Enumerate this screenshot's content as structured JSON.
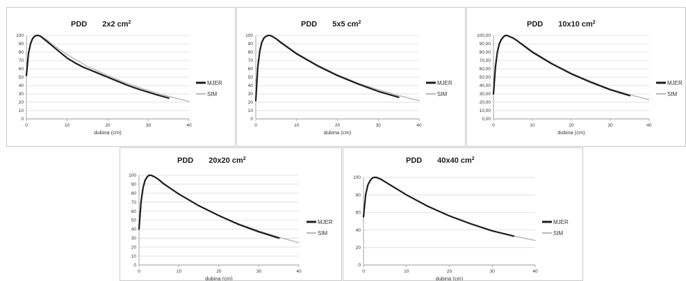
{
  "colors": {
    "measured": "#1c1c1c",
    "simulated": "#b8b8b8",
    "grid": "#d9d9d9",
    "axis": "#9a9a9a"
  },
  "chart_data": [
    {
      "type": "line",
      "title": "PDD",
      "field": "2x2 cm",
      "field_sup": "2",
      "xlabel": "dubina (cm)",
      "xlim": [
        0,
        40
      ],
      "ylim": [
        0,
        100
      ],
      "xticks": [
        "0",
        "10",
        "20",
        "30",
        "40"
      ],
      "yticks": [
        "0",
        "10",
        "20",
        "30",
        "40",
        "50",
        "60",
        "70",
        "80",
        "90",
        "100"
      ],
      "grid": true,
      "legend": "right",
      "series": [
        {
          "name": "MJER",
          "x": [
            0,
            0.5,
            1,
            1.5,
            2,
            2.5,
            3,
            3.5,
            4,
            5,
            6,
            8,
            10,
            12,
            14,
            15,
            16,
            18,
            20,
            22,
            25,
            28,
            30,
            32,
            35
          ],
          "y": [
            52,
            78,
            90,
            96,
            99,
            100,
            100,
            99,
            97,
            93,
            89,
            81,
            73,
            67,
            62,
            60,
            58,
            54,
            50,
            46,
            40,
            35,
            32,
            29,
            25
          ]
        },
        {
          "name": "SIM",
          "x": [
            0,
            0.5,
            1,
            1.5,
            2,
            2.5,
            3,
            4,
            5,
            6,
            8,
            10,
            15,
            20,
            25,
            30,
            35,
            40
          ],
          "y": [
            55,
            80,
            91,
            97,
            99,
            100,
            100,
            98,
            95,
            91,
            84,
            77,
            63,
            52,
            42,
            34,
            27,
            21
          ]
        }
      ]
    },
    {
      "type": "line",
      "title": "PDD",
      "field": "5x5 cm",
      "field_sup": "2",
      "xlabel": "dubina (cm)",
      "xlim": [
        0,
        40
      ],
      "ylim": [
        0,
        100
      ],
      "xticks": [
        "0",
        "10",
        "20",
        "30",
        "40"
      ],
      "yticks": [
        "0",
        "10",
        "20",
        "30",
        "40",
        "50",
        "60",
        "70",
        "80",
        "90",
        "100"
      ],
      "grid": true,
      "legend": "right",
      "series": [
        {
          "name": "MJER",
          "x": [
            0,
            0.5,
            1,
            1.5,
            2,
            2.5,
            3,
            3.5,
            4,
            5,
            6,
            8,
            10,
            15,
            20,
            25,
            30,
            35
          ],
          "y": [
            22,
            62,
            82,
            92,
            97,
            99,
            100,
            100,
            99,
            96,
            92,
            85,
            78,
            64,
            52,
            42,
            33,
            26
          ]
        },
        {
          "name": "SIM",
          "x": [
            0,
            0.5,
            1,
            1.5,
            2,
            2.5,
            3,
            3.5,
            4,
            5,
            6,
            8,
            10,
            15,
            20,
            25,
            30,
            35,
            40
          ],
          "y": [
            30,
            66,
            84,
            93,
            97,
            99,
            100,
            100,
            99,
            96,
            93,
            86,
            79,
            65,
            53,
            43,
            35,
            28,
            22
          ]
        }
      ]
    },
    {
      "type": "line",
      "title": "PDD",
      "field": "10x10 cm",
      "field_sup": "2",
      "xlabel": "dubina (cm)",
      "xlim": [
        0,
        40
      ],
      "ylim": [
        0,
        100
      ],
      "xticks": [
        "0",
        "10",
        "20",
        "30",
        "40"
      ],
      "yticks": [
        "0,00",
        "10,00",
        "20,00",
        "30,00",
        "40,00",
        "50,00",
        "60,00",
        "70,00",
        "80,00",
        "90,00",
        "100,00"
      ],
      "grid": true,
      "legend": "right",
      "series": [
        {
          "name": "MJER",
          "x": [
            0,
            0.5,
            1,
            1.5,
            2,
            2.5,
            3,
            3.5,
            4,
            5,
            6,
            8,
            10,
            15,
            20,
            25,
            30,
            35
          ],
          "y": [
            30,
            62,
            80,
            90,
            95,
            98,
            100,
            100,
            99,
            97,
            94,
            87,
            80,
            66,
            54,
            44,
            35,
            28
          ]
        },
        {
          "name": "SIM",
          "x": [
            0,
            0.5,
            1,
            1.5,
            2,
            2.5,
            3,
            3.5,
            4,
            5,
            6,
            8,
            10,
            15,
            20,
            25,
            30,
            35,
            40
          ],
          "y": [
            35,
            65,
            82,
            91,
            96,
            98,
            100,
            100,
            99,
            97,
            94,
            88,
            81,
            67,
            55,
            45,
            36,
            29,
            23
          ]
        }
      ]
    },
    {
      "type": "line",
      "title": "PDD",
      "field": "20x20 cm",
      "field_sup": "2",
      "xlabel": "dubina (cm)",
      "xlim": [
        0,
        40
      ],
      "ylim": [
        0,
        100
      ],
      "xticks": [
        "0",
        "10",
        "20",
        "30",
        "40"
      ],
      "yticks": [
        "0",
        "10",
        "20",
        "30",
        "40",
        "50",
        "60",
        "70",
        "80",
        "90",
        "100"
      ],
      "grid": true,
      "legend": "right",
      "series": [
        {
          "name": "MJER",
          "x": [
            0,
            0.5,
            1,
            1.5,
            2,
            2.5,
            3,
            3.5,
            4,
            5,
            6,
            8,
            10,
            15,
            20,
            25,
            30,
            35
          ],
          "y": [
            40,
            70,
            86,
            94,
            98,
            100,
            100,
            99,
            98,
            95,
            91,
            85,
            79,
            66,
            55,
            45,
            37,
            30
          ]
        },
        {
          "name": "SIM",
          "x": [
            0,
            0.5,
            1,
            1.5,
            2,
            2.5,
            3,
            3.5,
            4,
            5,
            6,
            8,
            10,
            15,
            20,
            25,
            30,
            35,
            40
          ],
          "y": [
            45,
            73,
            87,
            95,
            98,
            100,
            100,
            99,
            98,
            95,
            92,
            85,
            79,
            66,
            55,
            46,
            38,
            31,
            25
          ]
        }
      ]
    },
    {
      "type": "line",
      "title": "PDD",
      "field": "40x40 cm",
      "field_sup": "2",
      "xlabel": "dubina (cm)",
      "xlim": [
        0,
        40
      ],
      "ylim": [
        0,
        100
      ],
      "xticks": [
        "0",
        "10",
        "20",
        "30",
        "40"
      ],
      "yticks": [
        "0",
        "20",
        "40",
        "60",
        "80",
        "100"
      ],
      "grid": true,
      "legend": "right",
      "series": [
        {
          "name": "MJER",
          "x": [
            0,
            0.5,
            1,
            1.5,
            2,
            2.5,
            3,
            3.5,
            4,
            5,
            6,
            8,
            10,
            15,
            20,
            25,
            30,
            35
          ],
          "y": [
            55,
            80,
            91,
            96,
            99,
            100,
            100,
            99,
            98,
            95,
            92,
            86,
            80,
            67,
            56,
            47,
            39,
            33
          ]
        },
        {
          "name": "SIM",
          "x": [
            0,
            0.5,
            1,
            1.5,
            2,
            2.5,
            3,
            3.5,
            4,
            5,
            6,
            8,
            10,
            15,
            20,
            25,
            30,
            35,
            40
          ],
          "y": [
            58,
            82,
            92,
            97,
            99,
            100,
            100,
            99,
            98,
            95,
            92,
            86,
            80,
            67,
            56,
            47,
            39,
            33,
            28
          ]
        }
      ]
    }
  ]
}
